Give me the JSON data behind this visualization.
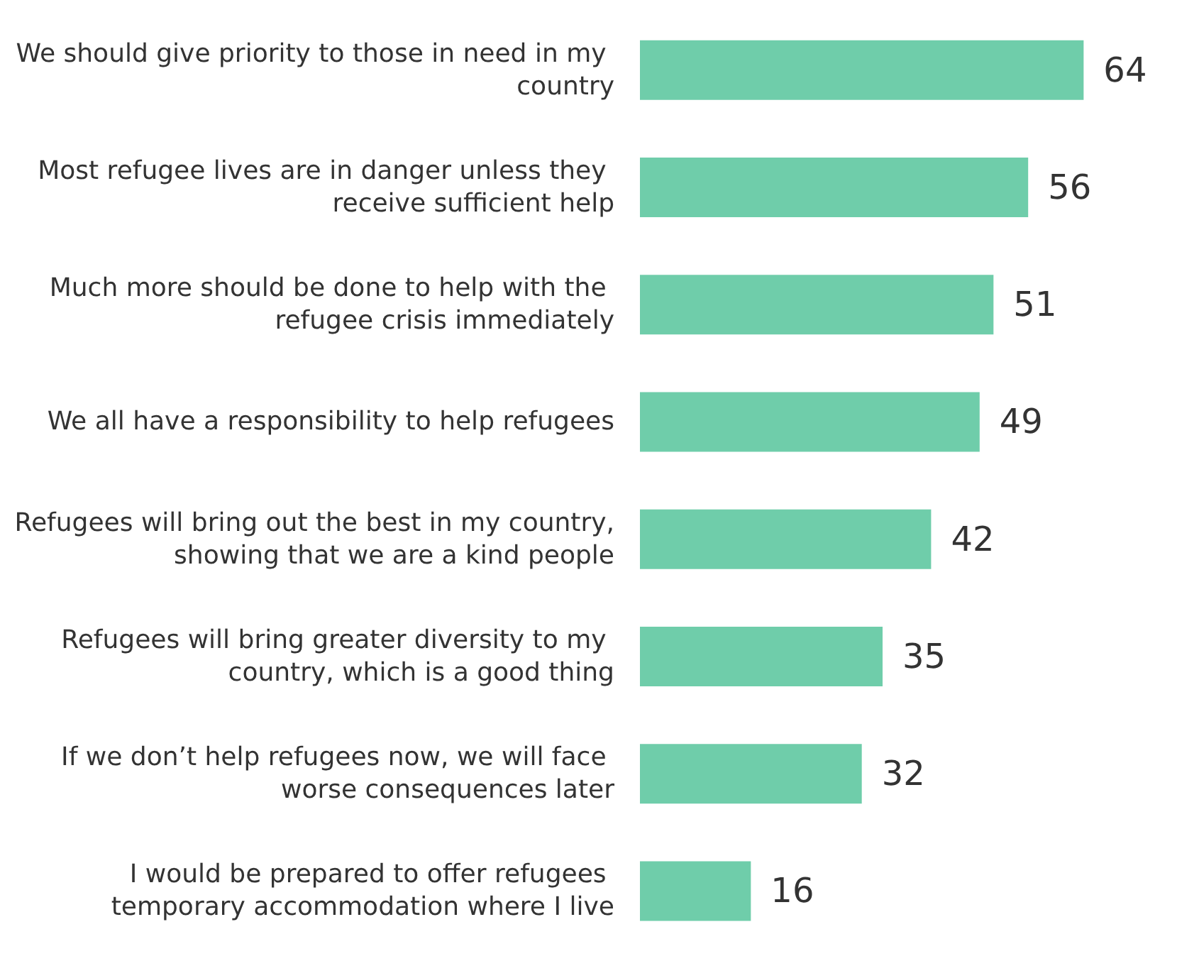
{
  "chart_data": {
    "type": "bar",
    "orientation": "horizontal",
    "data_labels": true,
    "tick_labels": "y",
    "color": "#6fcdaa",
    "categories": [
      "We should give priority to those in need in my country",
      "Most refugee lives are in danger unless they receive sufficient help",
      "Much more should be done to help with the refugee crisis immediately",
      "We all have a responsibility to help refugees",
      "Refugees will bring out the best in my country, showing that we are a kind people",
      "Refugees will bring greater diversity to my country, which is a good thing",
      "If we don’t help refugees now, we will face worse consequences later",
      "I would be prepared to offer refugees temporary accommodation where I live"
    ],
    "values": [
      64,
      56,
      51,
      49,
      42,
      35,
      32,
      16
    ]
  }
}
